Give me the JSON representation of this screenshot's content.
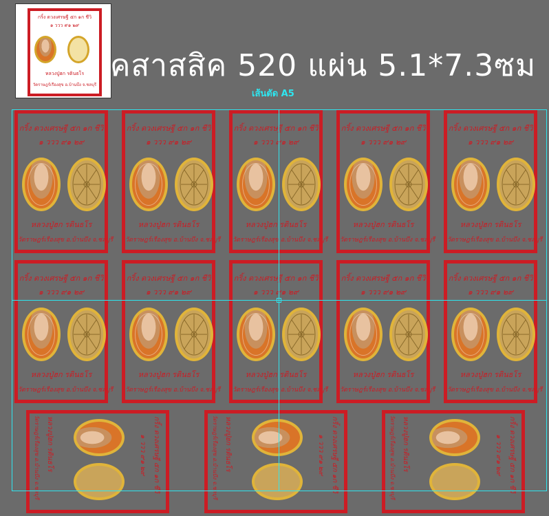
{
  "header": {
    "headline": "คสาสสิค 520 แผ่น 5.1*7.3ซม",
    "cut_label": "เส้นตัด A5"
  },
  "card": {
    "line1": "กริ้ง ดวงเศรษฐี ๕ก ๑ก ชีวิ",
    "line2": "๑ ววว ๙๑ ๒๙",
    "name": "หลวงปู่ฮก รตินธโร",
    "temple": "วัดราษฎร์เรืองสุข อ.บ้านบึง จ.ชลบุรี"
  },
  "colors": {
    "background": "#6b6b6b",
    "card_red": "#cc1c24",
    "guide_cyan": "#2ee6f0",
    "gold": "#e0b43a"
  }
}
